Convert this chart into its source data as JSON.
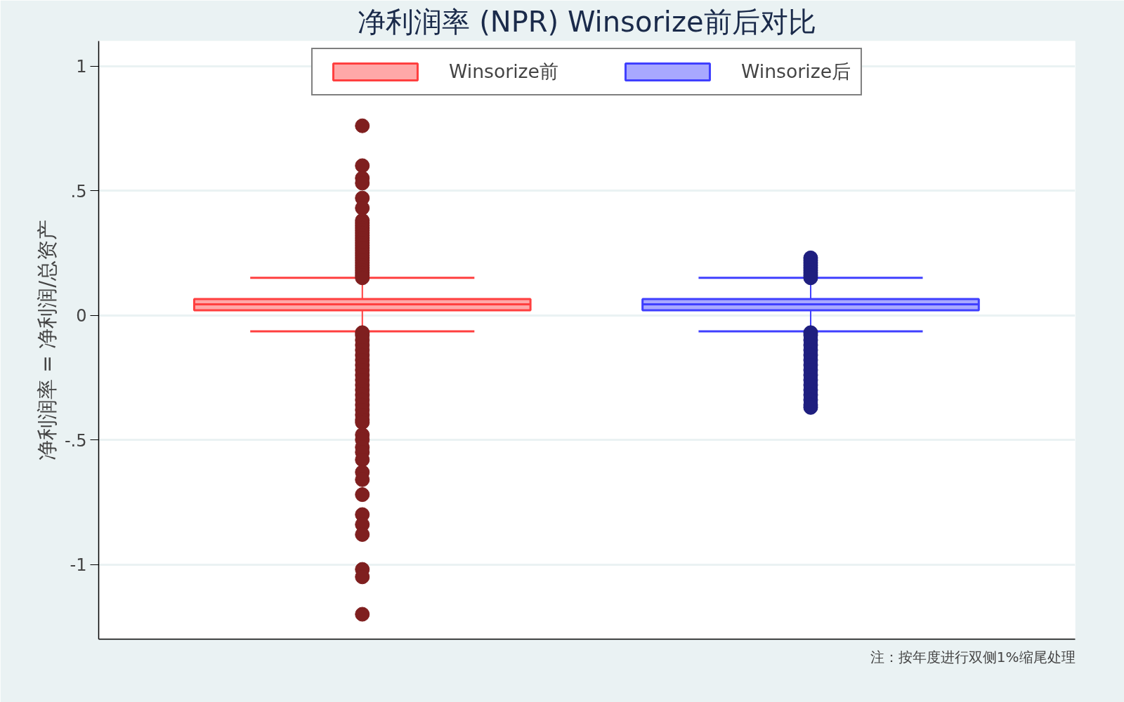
{
  "chart_data": {
    "type": "box",
    "title": "净利润率 (NPR) Winsorize前后对比",
    "ylabel": "净利润率 = 净利润/总资产",
    "annotations": [
      "注：按年度进行双侧1%缩尾处理"
    ],
    "categories": [
      null,
      null
    ],
    "series": [
      {
        "name": "Winsorize前",
        "color": "#ffa8a8",
        "boxes": [
          {
            "low": -0.065,
            "q1": 0.02,
            "median": 0.044,
            "q3": 0.065,
            "high": 0.15,
            "outliers": [
              0.76,
              0.6,
              0.55,
              0.53,
              0.47,
              0.43,
              0.38,
              0.37,
              0.36,
              0.35,
              0.34,
              0.33,
              0.32,
              0.31,
              0.3,
              0.29,
              0.28,
              0.27,
              0.26,
              0.25,
              0.24,
              0.23,
              0.22,
              0.21,
              0.2,
              0.19,
              0.18,
              0.17,
              0.16,
              0.15,
              -0.07,
              -0.08,
              -0.1,
              -0.12,
              -0.14,
              -0.16,
              -0.18,
              -0.2,
              -0.22,
              -0.24,
              -0.26,
              -0.28,
              -0.3,
              -0.32,
              -0.34,
              -0.36,
              -0.38,
              -0.4,
              -0.42,
              -0.43,
              -0.48,
              -0.5,
              -0.53,
              -0.55,
              -0.58,
              -0.63,
              -0.66,
              -0.72,
              -0.8,
              -0.84,
              -0.88,
              -1.02,
              -1.05,
              -1.2
            ]
          },
          null
        ]
      },
      {
        "name": "Winsorize后",
        "color": "#a8a8ff",
        "boxes": [
          null,
          {
            "low": -0.065,
            "q1": 0.02,
            "median": 0.044,
            "q3": 0.065,
            "high": 0.15,
            "outliers": [
              0.23,
              0.22,
              0.21,
              0.2,
              0.19,
              0.18,
              0.17,
              0.16,
              0.15,
              -0.07,
              -0.08,
              -0.1,
              -0.12,
              -0.14,
              -0.16,
              -0.18,
              -0.2,
              -0.22,
              -0.24,
              -0.26,
              -0.28,
              -0.3,
              -0.32,
              -0.34,
              -0.36,
              -0.37
            ]
          }
        ]
      }
    ],
    "ylim": [
      -1.3,
      1.1
    ],
    "yticks": [
      {
        "value": -1,
        "label": "-1"
      },
      {
        "value": -0.5,
        "label": "-.5"
      },
      0,
      {
        "value": 0.5,
        "label": ".5"
      },
      1
    ],
    "grid": "y",
    "legend": "top",
    "tick_labels": "y",
    "marker": "circle"
  }
}
